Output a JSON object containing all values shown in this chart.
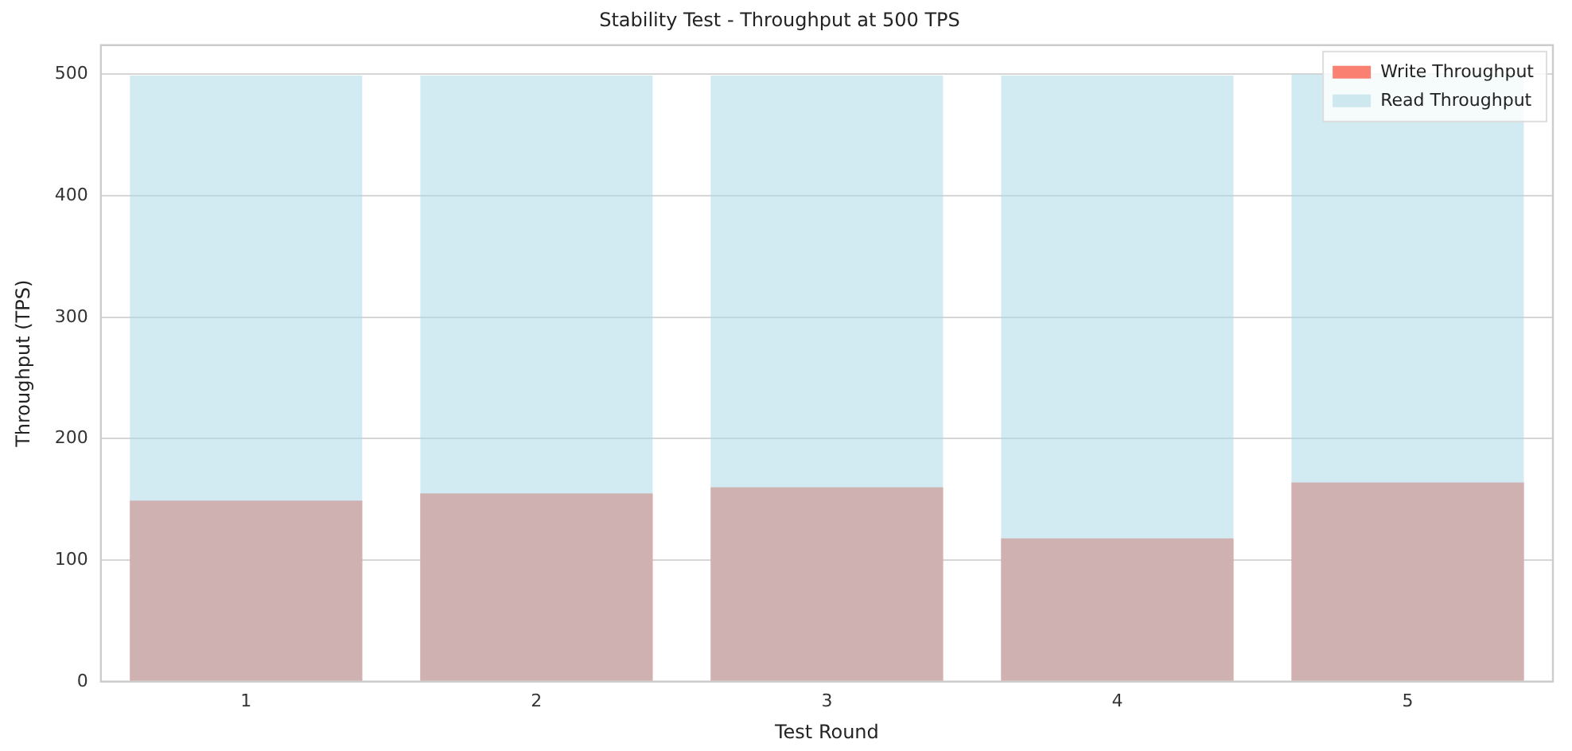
{
  "chart_data": {
    "type": "bar",
    "title": "Stability Test - Throughput at 500 TPS",
    "xlabel": "Test Round",
    "ylabel": "Throughput (TPS)",
    "categories": [
      "1",
      "2",
      "3",
      "4",
      "5"
    ],
    "series": [
      {
        "name": "Write Throughput",
        "color": "#fa8072",
        "values": [
          149,
          155,
          160,
          118,
          164
        ]
      },
      {
        "name": "Read Throughput",
        "color": "#add8e6",
        "values": [
          499,
          499,
          499,
          499,
          500
        ]
      }
    ],
    "ylim": [
      0,
      524
    ],
    "yticks": [
      0,
      100,
      200,
      300,
      400,
      500
    ],
    "grid": "y",
    "legend": "top right"
  }
}
